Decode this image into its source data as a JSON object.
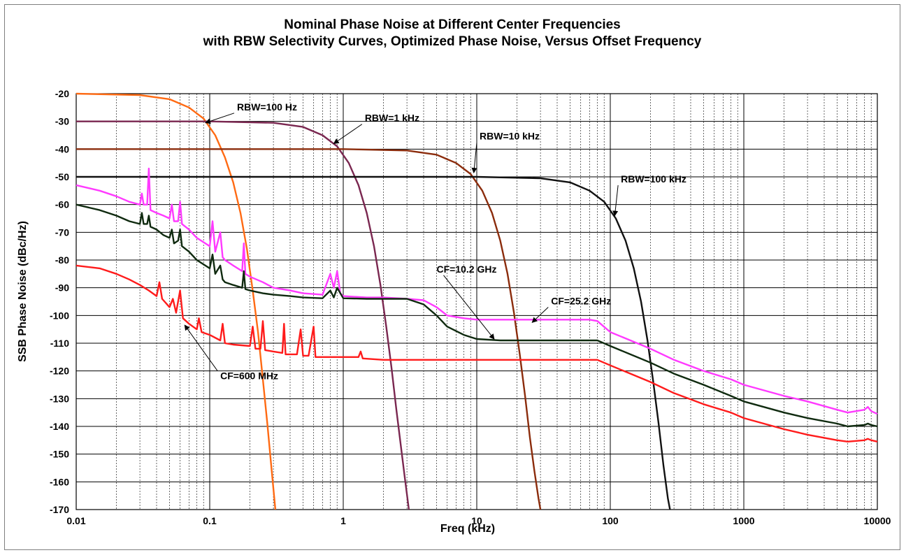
{
  "chart_data": {
    "type": "line",
    "title": "Nominal Phase Noise at Different Center Frequencies",
    "subtitle": "with RBW Selectivity Curves, Optimized Phase Noise, Versus Offset Frequency",
    "xlabel": "Freq (kHz)",
    "ylabel": "SSB Phase Noise (dBc/Hz)",
    "x_scale": "log",
    "xlim": [
      0.01,
      10000
    ],
    "ylim": [
      -170,
      -20
    ],
    "x_ticks": [
      "0.01",
      "0.1",
      "1",
      "10",
      "100",
      "1000",
      "10000"
    ],
    "x_tick_values": [
      0.01,
      0.1,
      1,
      10,
      100,
      1000,
      10000
    ],
    "y_ticks": [
      -20,
      -30,
      -40,
      -50,
      -60,
      -70,
      -80,
      -90,
      -100,
      -110,
      -120,
      -130,
      -140,
      -150,
      -160,
      -170
    ],
    "grid": true,
    "legend": "none",
    "series": [
      {
        "color": "#ff6a13",
        "x": [
          0.01,
          0.03,
          0.05,
          0.07,
          0.09,
          0.11,
          0.13,
          0.15,
          0.17,
          0.19,
          0.21,
          0.23,
          0.25,
          0.27,
          0.29,
          0.31
        ],
        "y": [
          -20,
          -20.5,
          -22,
          -25,
          -29,
          -35,
          -43,
          -52,
          -63,
          -76,
          -91,
          -106,
          -123,
          -139,
          -155,
          -170
        ]
      },
      {
        "color": "#7a2750",
        "x": [
          0.01,
          0.1,
          0.3,
          0.5,
          0.7,
          0.9,
          1.1,
          1.3,
          1.5,
          1.7,
          1.9,
          2.1,
          2.3,
          2.5,
          2.7,
          2.9,
          3.1
        ],
        "y": [
          -30,
          -30,
          -30.5,
          -32,
          -35,
          -39,
          -45,
          -53,
          -63,
          -75,
          -89,
          -104,
          -119,
          -134,
          -147,
          -159,
          -170
        ]
      },
      {
        "color": "#8b2c0c",
        "x": [
          0.01,
          1,
          3,
          5,
          7,
          9,
          11,
          13,
          15,
          17,
          19,
          21,
          23,
          25,
          27,
          29,
          30
        ],
        "y": [
          -40,
          -40,
          -40.5,
          -42,
          -45,
          -49,
          -55,
          -63,
          -73,
          -85,
          -99,
          -114,
          -129,
          -144,
          -156,
          -166,
          -170
        ]
      },
      {
        "color": "#111111",
        "x": [
          0.01,
          10,
          30,
          50,
          70,
          90,
          110,
          130,
          150,
          170,
          190,
          210,
          230,
          250,
          270,
          280
        ],
        "y": [
          -50,
          -50,
          -50.5,
          -52,
          -55,
          -59,
          -65,
          -73,
          -83,
          -95,
          -109,
          -124,
          -139,
          -154,
          -166,
          -170
        ]
      },
      {
        "name": "CF=25.2 GHz",
        "color": "#ff3aff",
        "x": [
          0.01,
          0.015,
          0.02,
          0.025,
          0.03,
          0.031,
          0.032,
          0.034,
          0.035,
          0.036,
          0.04,
          0.045,
          0.05,
          0.052,
          0.054,
          0.058,
          0.06,
          0.062,
          0.07,
          0.08,
          0.1,
          0.105,
          0.11,
          0.12,
          0.125,
          0.13,
          0.15,
          0.175,
          0.18,
          0.185,
          0.2,
          0.25,
          0.3,
          0.4,
          0.5,
          0.7,
          0.8,
          0.85,
          0.9,
          0.95,
          1,
          1.5,
          2,
          3,
          4,
          5,
          6,
          8,
          10,
          15,
          20,
          30,
          50,
          70,
          80,
          100,
          200,
          300,
          500,
          800,
          1000,
          2000,
          3000,
          5000,
          6000,
          8000,
          8500,
          9000,
          10000
        ],
        "y": [
          -53,
          -55,
          -57,
          -59,
          -60,
          -56,
          -60,
          -60,
          -47,
          -62,
          -63,
          -64,
          -65,
          -60,
          -66,
          -66,
          -59,
          -67,
          -69,
          -72,
          -75,
          -66,
          -77,
          -70,
          -79,
          -80,
          -82,
          -84,
          -74,
          -85,
          -86,
          -88,
          -90,
          -91,
          -92,
          -92.5,
          -85,
          -90,
          -84,
          -92,
          -93,
          -93.5,
          -93.5,
          -94,
          -94.5,
          -97,
          -100,
          -101,
          -101.5,
          -101.5,
          -101.5,
          -101.5,
          -101.5,
          -101.5,
          -102,
          -106,
          -112,
          -116,
          -120,
          -123,
          -125,
          -129,
          -131,
          -134,
          -135,
          -134,
          -133,
          -134.5,
          -135.5
        ]
      },
      {
        "name": "CF=10.2 GHz",
        "color": "#0f2a0f",
        "x": [
          0.01,
          0.015,
          0.02,
          0.025,
          0.03,
          0.031,
          0.032,
          0.034,
          0.035,
          0.036,
          0.04,
          0.045,
          0.05,
          0.052,
          0.054,
          0.058,
          0.06,
          0.062,
          0.07,
          0.08,
          0.1,
          0.105,
          0.11,
          0.12,
          0.125,
          0.13,
          0.15,
          0.175,
          0.18,
          0.185,
          0.2,
          0.25,
          0.3,
          0.4,
          0.5,
          0.7,
          0.8,
          0.85,
          0.9,
          1,
          1.5,
          2,
          3,
          4,
          5,
          6,
          8,
          10,
          15,
          20,
          30,
          50,
          70,
          80,
          100,
          200,
          300,
          500,
          800,
          1000,
          2000,
          3000,
          5000,
          6000,
          8000,
          8500,
          9000,
          10000
        ],
        "y": [
          -60,
          -62,
          -64,
          -66,
          -67,
          -63,
          -67,
          -67,
          -64,
          -68,
          -69,
          -71,
          -72,
          -69,
          -74,
          -73,
          -69,
          -75,
          -77,
          -80,
          -83,
          -78,
          -85,
          -82,
          -87,
          -88,
          -89,
          -90,
          -84,
          -90.5,
          -91,
          -92,
          -92.5,
          -93,
          -93.5,
          -93.8,
          -91,
          -93.5,
          -90,
          -93.8,
          -94,
          -94,
          -94,
          -96,
          -100,
          -104,
          -107,
          -108.5,
          -109,
          -109,
          -109,
          -109,
          -109,
          -109,
          -111,
          -117,
          -121,
          -125,
          -129,
          -131,
          -135,
          -137,
          -139,
          -140,
          -139.5,
          -139,
          -139.5,
          -140
        ]
      },
      {
        "name": "CF=600 MHz",
        "color": "#ff1b1b",
        "x": [
          0.01,
          0.015,
          0.02,
          0.025,
          0.03,
          0.035,
          0.04,
          0.042,
          0.044,
          0.05,
          0.053,
          0.056,
          0.06,
          0.063,
          0.07,
          0.08,
          0.083,
          0.087,
          0.1,
          0.12,
          0.125,
          0.13,
          0.15,
          0.2,
          0.21,
          0.22,
          0.24,
          0.25,
          0.26,
          0.3,
          0.35,
          0.36,
          0.37,
          0.45,
          0.48,
          0.5,
          0.55,
          0.6,
          0.62,
          0.8,
          1,
          1.3,
          1.35,
          1.4,
          2,
          3,
          5,
          10,
          20,
          30,
          50,
          80,
          100,
          200,
          300,
          500,
          800,
          1000,
          2000,
          3000,
          5000,
          6000,
          8000,
          8500,
          9000,
          10000
        ],
        "y": [
          -82,
          -83,
          -85,
          -87,
          -89,
          -91,
          -93,
          -88,
          -94,
          -97,
          -94,
          -99,
          -91,
          -101,
          -103,
          -105,
          -101,
          -106,
          -107,
          -109,
          -103,
          -110,
          -110.5,
          -111,
          -104,
          -112,
          -112,
          -102,
          -112.5,
          -113,
          -113.5,
          -103,
          -114,
          -114,
          -105,
          -114.5,
          -114.5,
          -104,
          -115,
          -115,
          -115,
          -115,
          -113,
          -115.5,
          -116,
          -116,
          -116,
          -116,
          -116,
          -116,
          -116,
          -116,
          -118,
          -124,
          -128,
          -132,
          -135,
          -137,
          -141,
          -143,
          -145,
          -145.5,
          -145,
          -144.5,
          -145,
          -145.5
        ]
      }
    ],
    "annotations": [
      {
        "text": "RBW=100 Hz",
        "x": 0.16,
        "y": -26,
        "arrow_to": [
          0.093,
          -30.5
        ]
      },
      {
        "text": "RBW=1 kHz",
        "x": 1.45,
        "y": -30,
        "arrow_to": [
          0.85,
          -38
        ]
      },
      {
        "text": "RBW=10 kHz",
        "x": 10.5,
        "y": -36.5,
        "arrow_to": [
          9.5,
          -48.5
        ]
      },
      {
        "text": "RBW=100 kHz",
        "x": 120,
        "y": -52,
        "arrow_to": [
          108,
          -64
        ]
      },
      {
        "text": "CF=10.2 GHz",
        "x": 5,
        "y": -84.5,
        "arrow_to": [
          13.5,
          -108.5
        ]
      },
      {
        "text": "CF=25.2 GHz",
        "x": 36,
        "y": -96,
        "arrow_to": [
          26,
          -102.5
        ]
      },
      {
        "text": "CF=600 MHz",
        "x": 0.12,
        "y": -123,
        "arrow_to": [
          0.065,
          -103.5
        ]
      }
    ]
  }
}
